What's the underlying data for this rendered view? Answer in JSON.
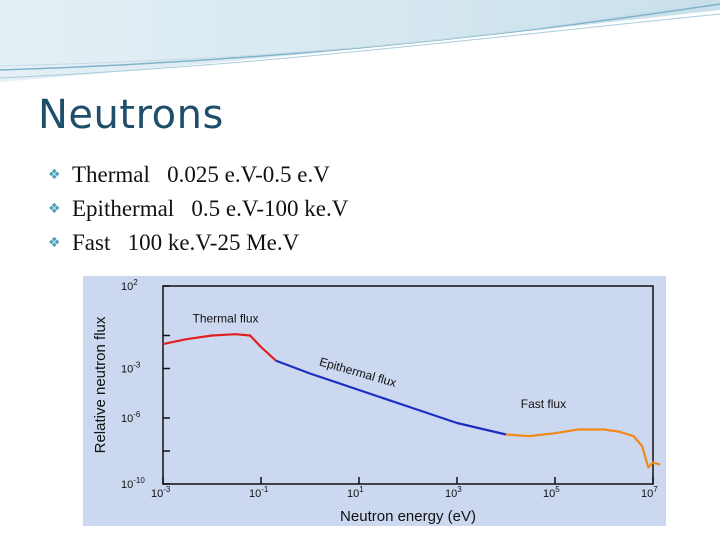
{
  "slide": {
    "title": "Neutrons",
    "bullets": [
      "Thermal   0.025 e.V-0.5 e.V",
      "Epithermal   0.5 e.V-100 ke.V",
      "Fast   100 ke.V-25 Me.V"
    ]
  },
  "colors": {
    "title": "#1f4e6b",
    "bullet": "#4a9fb8",
    "chart_background": "#ccd8f0",
    "thermal": "#e02020",
    "epithermal": "#1a2fc0",
    "fast": "#f08a18"
  },
  "chart_data": {
    "type": "line",
    "xlabel": "Neutron energy (eV)",
    "ylabel": "Relative neutron flux",
    "x_scale": "log",
    "y_scale": "log",
    "xlim": [
      0.001,
      10000000
    ],
    "ylim": [
      1e-10,
      100
    ],
    "x_ticks": [
      {
        "value": 0.001,
        "base": "10",
        "exp": "-3"
      },
      {
        "value": 0.1,
        "base": "10",
        "exp": "-1"
      },
      {
        "value": 10,
        "base": "10",
        "exp": "1"
      },
      {
        "value": 1000,
        "base": "10",
        "exp": "3"
      },
      {
        "value": 100000,
        "base": "10",
        "exp": "5"
      },
      {
        "value": 10000000,
        "base": "10",
        "exp": "7"
      }
    ],
    "y_ticks": [
      {
        "value": 100,
        "base": "10",
        "exp": "2"
      },
      {
        "value": 0.001,
        "base": "10",
        "exp": "-3"
      },
      {
        "value": 1e-06,
        "base": "10",
        "exp": "-6"
      },
      {
        "value": 1e-10,
        "base": "10",
        "exp": "-10"
      }
    ],
    "series": [
      {
        "name": "Thermal flux",
        "color": "#e02020",
        "x": [
          0.001,
          0.003,
          0.01,
          0.03,
          0.06,
          0.1,
          0.2
        ],
        "y": [
          0.03,
          0.06,
          0.1,
          0.12,
          0.1,
          0.02,
          0.003
        ]
      },
      {
        "name": "Epithermal flux",
        "color": "#1a2fc0",
        "x": [
          0.2,
          1,
          10,
          100,
          1000,
          10000
        ],
        "y": [
          0.003,
          0.0005,
          5e-05,
          5e-06,
          5e-07,
          1e-07
        ]
      },
      {
        "name": "Fast flux",
        "color": "#f08a18",
        "x": [
          10000,
          30000,
          100000,
          300000,
          1000000,
          2000000,
          4000000,
          6000000,
          8000000,
          10000000,
          14000000
        ],
        "y": [
          1e-07,
          8e-08,
          1.2e-07,
          2e-07,
          2e-07,
          1.5e-07,
          8e-08,
          2e-08,
          1e-09,
          2e-09,
          1.5e-09
        ]
      }
    ],
    "labels": [
      {
        "text": "Thermal flux",
        "series": 0
      },
      {
        "text": "Epithermal flux",
        "series": 1
      },
      {
        "text": "Fast flux",
        "series": 2
      }
    ],
    "grid": false,
    "legend": "none"
  }
}
